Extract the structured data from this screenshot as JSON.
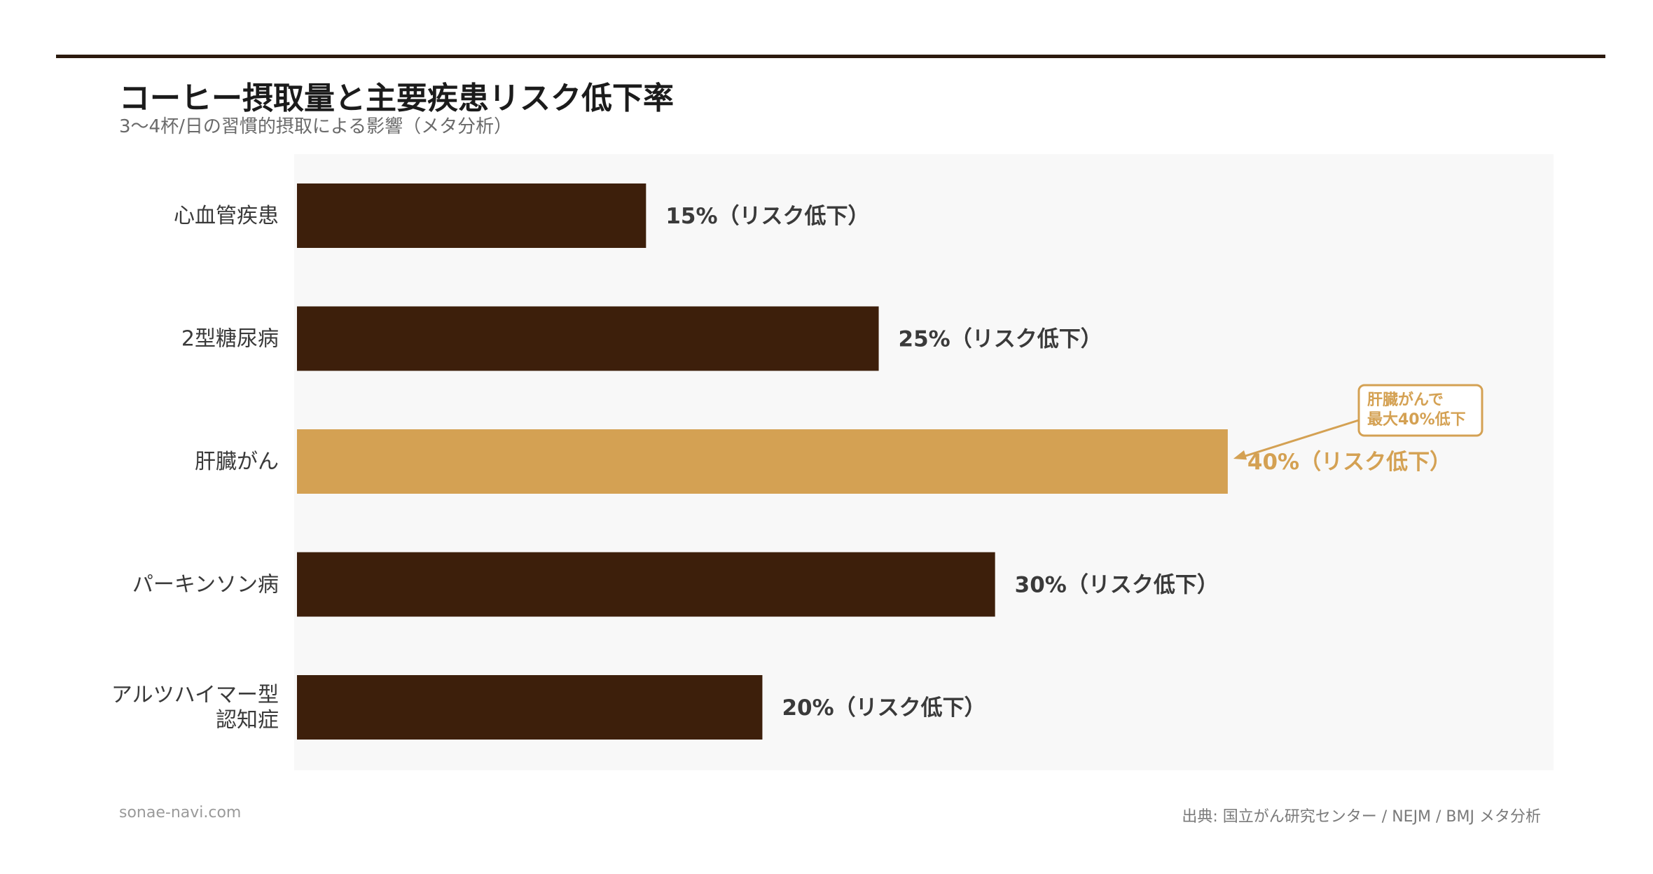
{
  "header": {
    "title": "コーヒー摂取量と主要疾患リスク低下率",
    "subtitle": "3〜4杯/日の習慣的摂取による影響（メタ分析）"
  },
  "footer": {
    "site": "sonae-navi.com",
    "source": "出典: 国立がん研究センター / NEJM / BMJ メタ分析"
  },
  "colors": {
    "bar": "#3d1f0b",
    "highlight": "#d4a153",
    "label": "#3a3a3a",
    "plot_bg": "#f8f8f8",
    "axis_text": "#3a3a3a"
  },
  "chart_data": {
    "type": "bar",
    "orientation": "horizontal",
    "categories": [
      [
        "心血管疾患"
      ],
      [
        "2型糖尿病"
      ],
      [
        "肝臓がん"
      ],
      [
        "パーキンソン病"
      ],
      [
        "アルツハイマー型",
        "認知症"
      ]
    ],
    "values": [
      15,
      25,
      40,
      30,
      20
    ],
    "data_labels": [
      "15%（リスク低下）",
      "25%（リスク低下）",
      "40%（リスク低下）",
      "30%（リスク低下）",
      "20%（リスク低下）"
    ],
    "highlight_index": 2,
    "xlim": [
      0,
      54
    ],
    "grid": false,
    "annotation": {
      "lines": [
        "肝臓がんで",
        "最大40%低下"
      ],
      "target_index": 2
    }
  }
}
